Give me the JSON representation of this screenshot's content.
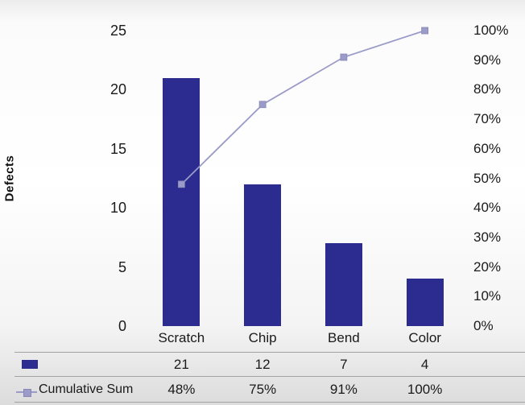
{
  "chart_data": {
    "type": "pareto",
    "title": "",
    "categories": [
      "Scratch",
      "Chip",
      "Bend",
      "Color"
    ],
    "series": [
      {
        "name": "Defects",
        "type": "bar",
        "values": [
          21,
          12,
          7,
          4
        ],
        "axis": "left"
      },
      {
        "name": "Cumulative Sum",
        "type": "line",
        "values": [
          48,
          75,
          91,
          100
        ],
        "unit": "%",
        "axis": "right"
      }
    ],
    "ylabel": "Defects",
    "xlabel": "",
    "grid": false,
    "legend_position": "bottom-table",
    "left_axis": {
      "min": 0,
      "max": 25,
      "ticks": [
        0,
        5,
        10,
        15,
        20,
        25
      ]
    },
    "right_axis": {
      "min": 0,
      "max": 100,
      "tick_labels": [
        "0%",
        "10%",
        "20%",
        "30%",
        "40%",
        "50%",
        "60%",
        "70%",
        "80%",
        "90%",
        "100%"
      ]
    },
    "colors": {
      "bar": "#2b2b90",
      "line": "#9b9bc9",
      "marker": "#9b9bc9"
    },
    "table": {
      "defects_row": [
        "21",
        "12",
        "7",
        "4"
      ],
      "cumulative_label": "Cumulative Sum",
      "cumulative_row": [
        "48%",
        "75%",
        "91%",
        "100%"
      ]
    }
  }
}
